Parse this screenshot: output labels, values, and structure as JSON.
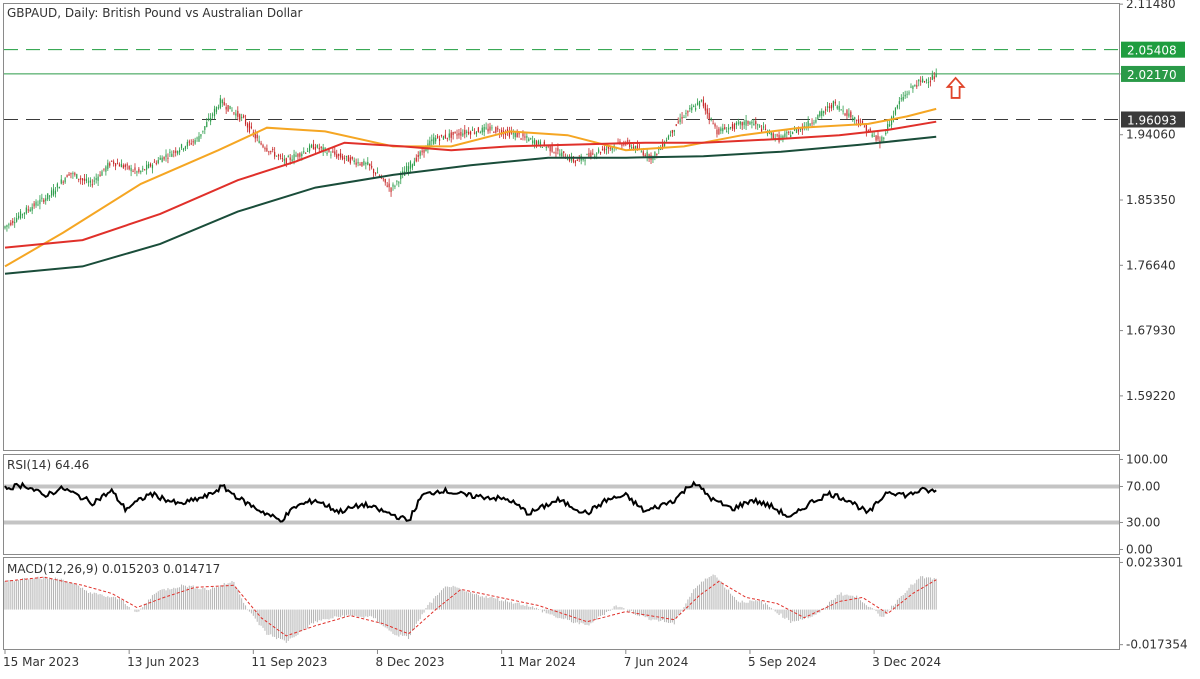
{
  "chart_data": [
    {
      "type": "candlestick",
      "title": "GBPAUD, Daily:  British Pound vs Australian Dollar",
      "y_ticks": [
        "2.11480",
        "2.02170",
        "1.94060",
        "1.85350",
        "1.76640",
        "1.67930",
        "1.59220"
      ],
      "y_tick_values": [
        2.1148,
        2.0217,
        1.9406,
        1.8535,
        1.7664,
        1.6793,
        1.5922
      ],
      "ylim": [
        1.52,
        2.115
      ],
      "x_ticks": [
        "15 Mar 2023",
        "13 Jun 2023",
        "11 Sep 2023",
        "8 Dec 2023",
        "11 Mar 2024",
        "7 Jun 2024",
        "5 Sep 2024",
        "3 Dec 2024"
      ],
      "x_tick_bars": [
        0,
        64,
        128,
        192,
        256,
        320,
        384,
        448
      ],
      "bar_count": 481,
      "price_path": [
        {
          "bar": 0,
          "value": 1.816
        },
        {
          "bar": 12,
          "value": 1.84
        },
        {
          "bar": 24,
          "value": 1.86
        },
        {
          "bar": 34,
          "value": 1.89
        },
        {
          "bar": 45,
          "value": 1.875
        },
        {
          "bar": 56,
          "value": 1.905
        },
        {
          "bar": 70,
          "value": 1.89
        },
        {
          "bar": 82,
          "value": 1.91
        },
        {
          "bar": 100,
          "value": 1.935
        },
        {
          "bar": 112,
          "value": 1.985
        },
        {
          "bar": 124,
          "value": 1.96
        },
        {
          "bar": 132,
          "value": 1.93
        },
        {
          "bar": 145,
          "value": 1.905
        },
        {
          "bar": 160,
          "value": 1.925
        },
        {
          "bar": 175,
          "value": 1.91
        },
        {
          "bar": 188,
          "value": 1.9
        },
        {
          "bar": 200,
          "value": 1.868
        },
        {
          "bar": 208,
          "value": 1.895
        },
        {
          "bar": 222,
          "value": 1.935
        },
        {
          "bar": 240,
          "value": 1.945
        },
        {
          "bar": 252,
          "value": 1.948
        },
        {
          "bar": 265,
          "value": 1.94
        },
        {
          "bar": 280,
          "value": 1.925
        },
        {
          "bar": 295,
          "value": 1.905
        },
        {
          "bar": 308,
          "value": 1.92
        },
        {
          "bar": 320,
          "value": 1.93
        },
        {
          "bar": 335,
          "value": 1.91
        },
        {
          "bar": 350,
          "value": 1.965
        },
        {
          "bar": 360,
          "value": 1.985
        },
        {
          "bar": 368,
          "value": 1.945
        },
        {
          "bar": 385,
          "value": 1.958
        },
        {
          "bar": 400,
          "value": 1.935
        },
        {
          "bar": 415,
          "value": 1.955
        },
        {
          "bar": 428,
          "value": 1.982
        },
        {
          "bar": 440,
          "value": 1.96
        },
        {
          "bar": 452,
          "value": 1.93
        },
        {
          "bar": 462,
          "value": 1.985
        },
        {
          "bar": 470,
          "value": 2.008
        },
        {
          "bar": 480,
          "value": 2.018
        }
      ],
      "moving_averages": [
        {
          "color": "#f5a623",
          "points": [
            {
              "bar": 0,
              "value": 1.765
            },
            {
              "bar": 30,
              "value": 1.81
            },
            {
              "bar": 70,
              "value": 1.875
            },
            {
              "bar": 110,
              "value": 1.92
            },
            {
              "bar": 135,
              "value": 1.95
            },
            {
              "bar": 165,
              "value": 1.945
            },
            {
              "bar": 200,
              "value": 1.925
            },
            {
              "bar": 230,
              "value": 1.925
            },
            {
              "bar": 260,
              "value": 1.945
            },
            {
              "bar": 290,
              "value": 1.94
            },
            {
              "bar": 320,
              "value": 1.92
            },
            {
              "bar": 350,
              "value": 1.925
            },
            {
              "bar": 380,
              "value": 1.94
            },
            {
              "bar": 410,
              "value": 1.95
            },
            {
              "bar": 445,
              "value": 1.955
            },
            {
              "bar": 465,
              "value": 1.965
            },
            {
              "bar": 480,
              "value": 1.975
            }
          ]
        },
        {
          "color": "#e0302a",
          "points": [
            {
              "bar": 0,
              "value": 1.79
            },
            {
              "bar": 40,
              "value": 1.8
            },
            {
              "bar": 80,
              "value": 1.835
            },
            {
              "bar": 120,
              "value": 1.88
            },
            {
              "bar": 150,
              "value": 1.905
            },
            {
              "bar": 175,
              "value": 1.93
            },
            {
              "bar": 205,
              "value": 1.925
            },
            {
              "bar": 230,
              "value": 1.92
            },
            {
              "bar": 260,
              "value": 1.925
            },
            {
              "bar": 300,
              "value": 1.928
            },
            {
              "bar": 330,
              "value": 1.93
            },
            {
              "bar": 360,
              "value": 1.93
            },
            {
              "bar": 400,
              "value": 1.935
            },
            {
              "bar": 430,
              "value": 1.94
            },
            {
              "bar": 455,
              "value": 1.947
            },
            {
              "bar": 480,
              "value": 1.958
            }
          ]
        },
        {
          "color": "#1a4d3a",
          "points": [
            {
              "bar": 0,
              "value": 1.755
            },
            {
              "bar": 40,
              "value": 1.765
            },
            {
              "bar": 80,
              "value": 1.795
            },
            {
              "bar": 120,
              "value": 1.838
            },
            {
              "bar": 160,
              "value": 1.87
            },
            {
              "bar": 200,
              "value": 1.887
            },
            {
              "bar": 240,
              "value": 1.9
            },
            {
              "bar": 280,
              "value": 1.91
            },
            {
              "bar": 320,
              "value": 1.91
            },
            {
              "bar": 360,
              "value": 1.912
            },
            {
              "bar": 400,
              "value": 1.918
            },
            {
              "bar": 440,
              "value": 1.927
            },
            {
              "bar": 480,
              "value": 1.938
            }
          ]
        }
      ],
      "levels": [
        {
          "value": 2.05408,
          "label": "2.05408",
          "style": "dashed",
          "color": "#1f9d3f"
        },
        {
          "value": 2.0217,
          "label": "2.02170",
          "style": "solid",
          "color": "#2a9a48"
        },
        {
          "value": 1.96093,
          "label": "1.96093",
          "style": "dashed",
          "color": "#3b3b3b"
        }
      ],
      "annotation": {
        "type": "up-arrow",
        "bar": 490,
        "value": 2.003,
        "color": "#e0442a"
      }
    },
    {
      "type": "line",
      "title": "RSI(14) 64.46",
      "y_ticks": [
        "100.00",
        "70.00",
        "30.00",
        "0.00"
      ],
      "y_tick_values": [
        100,
        70,
        30,
        0
      ],
      "ylim": [
        -5,
        105
      ],
      "levels": [
        70,
        30
      ],
      "series_path": [
        {
          "bar": 0,
          "value": 68
        },
        {
          "bar": 10,
          "value": 72
        },
        {
          "bar": 20,
          "value": 60
        },
        {
          "bar": 30,
          "value": 68
        },
        {
          "bar": 45,
          "value": 52
        },
        {
          "bar": 55,
          "value": 65
        },
        {
          "bar": 62,
          "value": 45
        },
        {
          "bar": 75,
          "value": 62
        },
        {
          "bar": 90,
          "value": 50
        },
        {
          "bar": 105,
          "value": 60
        },
        {
          "bar": 112,
          "value": 70
        },
        {
          "bar": 122,
          "value": 55
        },
        {
          "bar": 130,
          "value": 45
        },
        {
          "bar": 142,
          "value": 32
        },
        {
          "bar": 150,
          "value": 48
        },
        {
          "bar": 160,
          "value": 55
        },
        {
          "bar": 172,
          "value": 42
        },
        {
          "bar": 185,
          "value": 50
        },
        {
          "bar": 198,
          "value": 40
        },
        {
          "bar": 208,
          "value": 32
        },
        {
          "bar": 215,
          "value": 60
        },
        {
          "bar": 225,
          "value": 66
        },
        {
          "bar": 238,
          "value": 60
        },
        {
          "bar": 250,
          "value": 58
        },
        {
          "bar": 260,
          "value": 55
        },
        {
          "bar": 270,
          "value": 40
        },
        {
          "bar": 285,
          "value": 55
        },
        {
          "bar": 300,
          "value": 40
        },
        {
          "bar": 310,
          "value": 55
        },
        {
          "bar": 320,
          "value": 60
        },
        {
          "bar": 330,
          "value": 42
        },
        {
          "bar": 345,
          "value": 55
        },
        {
          "bar": 355,
          "value": 75
        },
        {
          "bar": 365,
          "value": 55
        },
        {
          "bar": 375,
          "value": 45
        },
        {
          "bar": 385,
          "value": 55
        },
        {
          "bar": 395,
          "value": 48
        },
        {
          "bar": 405,
          "value": 35
        },
        {
          "bar": 415,
          "value": 52
        },
        {
          "bar": 425,
          "value": 62
        },
        {
          "bar": 435,
          "value": 55
        },
        {
          "bar": 445,
          "value": 40
        },
        {
          "bar": 455,
          "value": 65
        },
        {
          "bar": 465,
          "value": 60
        },
        {
          "bar": 472,
          "value": 66
        },
        {
          "bar": 480,
          "value": 64.46
        }
      ]
    },
    {
      "type": "bar+line",
      "title": "MACD(12,26,9) 0.015203 0.014717",
      "y_ticks": [
        "0.023301",
        "-0.017354"
      ],
      "y_tick_values": [
        0.023301,
        -0.017354
      ],
      "ylim": [
        -0.0195,
        0.0255
      ],
      "histogram_color": "#b5b5b5",
      "signal_color": "#e0302a",
      "histogram_path": [
        {
          "bar": 0,
          "value": 0.014
        },
        {
          "bar": 15,
          "value": 0.016
        },
        {
          "bar": 30,
          "value": 0.015
        },
        {
          "bar": 45,
          "value": 0.008
        },
        {
          "bar": 60,
          "value": 0.005
        },
        {
          "bar": 68,
          "value": -0.002
        },
        {
          "bar": 78,
          "value": 0.009
        },
        {
          "bar": 92,
          "value": 0.012
        },
        {
          "bar": 105,
          "value": 0.01
        },
        {
          "bar": 118,
          "value": 0.014
        },
        {
          "bar": 125,
          "value": 0.0
        },
        {
          "bar": 135,
          "value": -0.012
        },
        {
          "bar": 145,
          "value": -0.016
        },
        {
          "bar": 160,
          "value": -0.006
        },
        {
          "bar": 175,
          "value": -0.003
        },
        {
          "bar": 190,
          "value": -0.004
        },
        {
          "bar": 200,
          "value": -0.012
        },
        {
          "bar": 208,
          "value": -0.014
        },
        {
          "bar": 218,
          "value": 0.002
        },
        {
          "bar": 228,
          "value": 0.012
        },
        {
          "bar": 240,
          "value": 0.008
        },
        {
          "bar": 255,
          "value": 0.005
        },
        {
          "bar": 270,
          "value": 0.002
        },
        {
          "bar": 285,
          "value": -0.004
        },
        {
          "bar": 300,
          "value": -0.008
        },
        {
          "bar": 315,
          "value": 0.002
        },
        {
          "bar": 330,
          "value": -0.004
        },
        {
          "bar": 345,
          "value": -0.007
        },
        {
          "bar": 355,
          "value": 0.01
        },
        {
          "bar": 365,
          "value": 0.018
        },
        {
          "bar": 378,
          "value": 0.004
        },
        {
          "bar": 390,
          "value": 0.004
        },
        {
          "bar": 405,
          "value": -0.006
        },
        {
          "bar": 418,
          "value": -0.003
        },
        {
          "bar": 430,
          "value": 0.008
        },
        {
          "bar": 440,
          "value": 0.006
        },
        {
          "bar": 452,
          "value": -0.004
        },
        {
          "bar": 465,
          "value": 0.01
        },
        {
          "bar": 472,
          "value": 0.016
        },
        {
          "bar": 480,
          "value": 0.015
        }
      ],
      "signal_path": [
        {
          "bar": 0,
          "value": 0.014
        },
        {
          "bar": 20,
          "value": 0.016
        },
        {
          "bar": 40,
          "value": 0.012
        },
        {
          "bar": 55,
          "value": 0.008
        },
        {
          "bar": 68,
          "value": 0.001
        },
        {
          "bar": 82,
          "value": 0.006
        },
        {
          "bar": 98,
          "value": 0.011
        },
        {
          "bar": 118,
          "value": 0.012
        },
        {
          "bar": 132,
          "value": -0.004
        },
        {
          "bar": 145,
          "value": -0.013
        },
        {
          "bar": 160,
          "value": -0.008
        },
        {
          "bar": 178,
          "value": -0.003
        },
        {
          "bar": 195,
          "value": -0.007
        },
        {
          "bar": 208,
          "value": -0.012
        },
        {
          "bar": 222,
          "value": 0.0
        },
        {
          "bar": 235,
          "value": 0.01
        },
        {
          "bar": 255,
          "value": 0.006
        },
        {
          "bar": 275,
          "value": 0.002
        },
        {
          "bar": 300,
          "value": -0.006
        },
        {
          "bar": 320,
          "value": -0.001
        },
        {
          "bar": 345,
          "value": -0.005
        },
        {
          "bar": 358,
          "value": 0.007
        },
        {
          "bar": 368,
          "value": 0.014
        },
        {
          "bar": 382,
          "value": 0.006
        },
        {
          "bar": 398,
          "value": 0.003
        },
        {
          "bar": 412,
          "value": -0.004
        },
        {
          "bar": 430,
          "value": 0.004
        },
        {
          "bar": 442,
          "value": 0.006
        },
        {
          "bar": 455,
          "value": -0.002
        },
        {
          "bar": 468,
          "value": 0.008
        },
        {
          "bar": 480,
          "value": 0.0147
        }
      ]
    }
  ]
}
